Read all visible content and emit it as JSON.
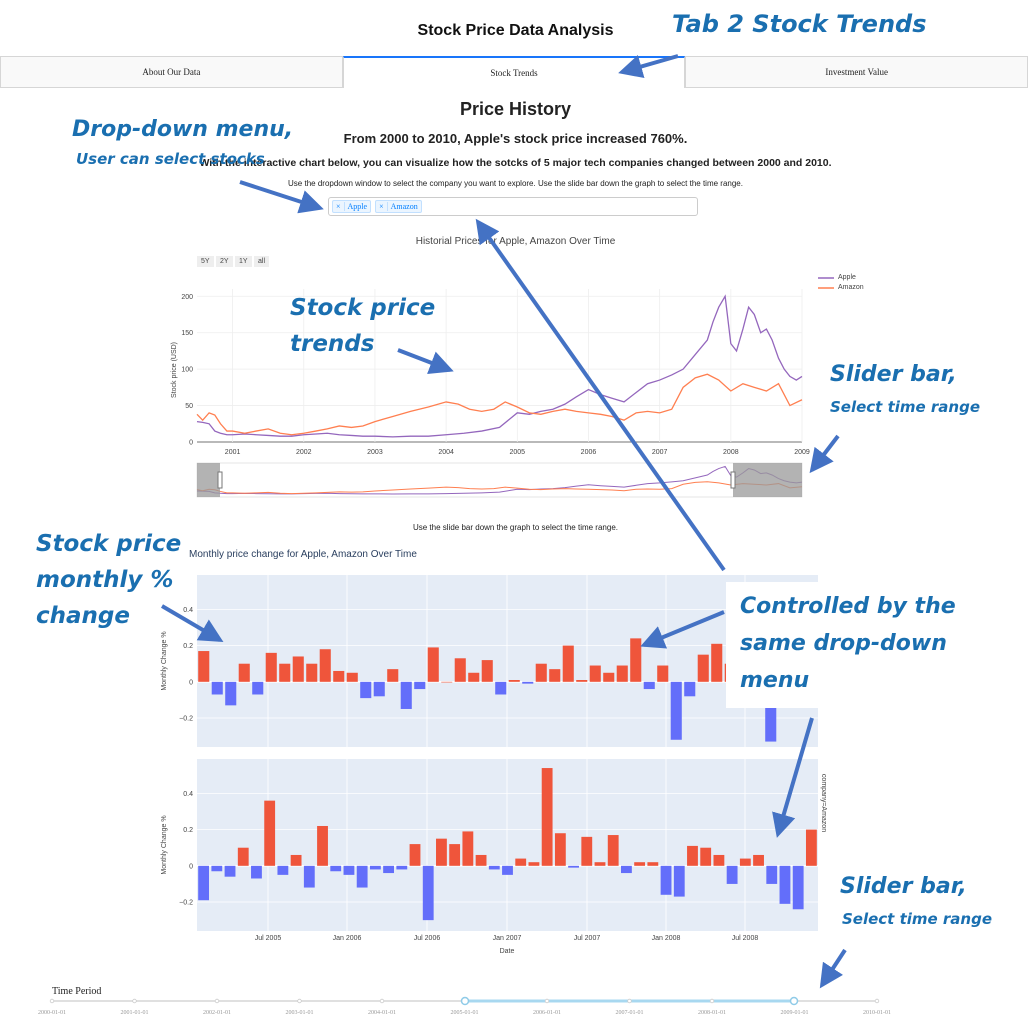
{
  "app": {
    "title": "Stock Price Data Analysis"
  },
  "tabs": [
    {
      "label": "About Our Data",
      "active": false
    },
    {
      "label": "Stock Trends",
      "active": true
    },
    {
      "label": "Investment Value",
      "active": false
    }
  ],
  "content": {
    "section_title": "Price History",
    "headline": "From 2000 to 2010, Apple's stock price increased 760%.",
    "intro_prefix": "With the interactive chart",
    "intro_suffix": " below, you can visualize how the sotcks of 5 major tech companies changed between 2000 and 2010.",
    "dropdown_instruction": "Use the dropdown window to select the company you want to explore. Use the slide bar down the graph to select the time range.",
    "slider_instruction": "Use the slide bar down the graph to select the time range."
  },
  "dropdown": {
    "selected": [
      {
        "remove": "×",
        "label": "Apple"
      },
      {
        "remove": "×",
        "label": "Amazon"
      }
    ]
  },
  "colors": {
    "apple": "#9467bd",
    "amazon": "#ff7f50",
    "positive": "#ef553b",
    "negative": "#636efa",
    "annotation": "#1a6fb0",
    "plot_bg": "#e5ecf6"
  },
  "chart_data": [
    {
      "type": "line",
      "title": "Historial Prices for Apple, Amazon Over Time",
      "ylabel": "Stock price (USD)",
      "xlabel": "",
      "range_buttons": [
        "5Y",
        "2Y",
        "1Y",
        "all"
      ],
      "x_ticks": [
        "2001",
        "2002",
        "2003",
        "2004",
        "2005",
        "2006",
        "2007",
        "2008",
        "2009"
      ],
      "y_ticks": [
        0,
        50,
        100,
        150,
        200
      ],
      "ylim": [
        0,
        210
      ],
      "xlim": [
        2000.5,
        2009.0
      ],
      "legend": "top-right",
      "series": [
        {
          "name": "Apple",
          "x": [
            2000.5,
            2000.58,
            2000.67,
            2000.75,
            2000.83,
            2000.92,
            2001.0,
            2001.17,
            2001.33,
            2001.5,
            2001.67,
            2001.83,
            2002.0,
            2002.17,
            2002.33,
            2002.5,
            2002.67,
            2002.83,
            2003.0,
            2003.25,
            2003.5,
            2003.75,
            2004.0,
            2004.25,
            2004.5,
            2004.75,
            2005.0,
            2005.17,
            2005.33,
            2005.5,
            2005.67,
            2005.83,
            2006.0,
            2006.17,
            2006.33,
            2006.5,
            2006.67,
            2006.83,
            2007.0,
            2007.17,
            2007.33,
            2007.5,
            2007.67,
            2007.75,
            2007.83,
            2007.92,
            2008.0,
            2008.08,
            2008.17,
            2008.25,
            2008.33,
            2008.42,
            2008.5,
            2008.58,
            2008.67,
            2008.75,
            2008.83,
            2008.92,
            2009.0
          ],
          "values": [
            28,
            27,
            25,
            15,
            12,
            10,
            10,
            11,
            10,
            9,
            8,
            8,
            10,
            11,
            12,
            10,
            9,
            8,
            8,
            7,
            8,
            8,
            10,
            12,
            15,
            20,
            40,
            38,
            42,
            45,
            52,
            62,
            72,
            65,
            60,
            55,
            68,
            80,
            85,
            92,
            100,
            120,
            140,
            165,
            185,
            200,
            135,
            125,
            155,
            185,
            175,
            150,
            155,
            140,
            115,
            100,
            90,
            85,
            90
          ]
        },
        {
          "name": "Amazon",
          "x": [
            2000.5,
            2000.58,
            2000.67,
            2000.75,
            2000.83,
            2000.92,
            2001.0,
            2001.17,
            2001.33,
            2001.5,
            2001.67,
            2001.83,
            2002.0,
            2002.17,
            2002.33,
            2002.5,
            2002.67,
            2002.83,
            2003.0,
            2003.25,
            2003.5,
            2003.75,
            2004.0,
            2004.17,
            2004.33,
            2004.5,
            2004.67,
            2004.83,
            2005.0,
            2005.17,
            2005.33,
            2005.5,
            2005.67,
            2005.83,
            2006.0,
            2006.17,
            2006.33,
            2006.5,
            2006.67,
            2006.83,
            2007.0,
            2007.17,
            2007.33,
            2007.5,
            2007.67,
            2007.83,
            2008.0,
            2008.17,
            2008.33,
            2008.5,
            2008.67,
            2008.83,
            2009.0
          ],
          "values": [
            38,
            30,
            40,
            37,
            25,
            15,
            15,
            12,
            15,
            18,
            12,
            10,
            12,
            15,
            18,
            22,
            20,
            22,
            28,
            35,
            42,
            48,
            55,
            52,
            45,
            42,
            45,
            55,
            48,
            40,
            38,
            42,
            45,
            42,
            40,
            38,
            35,
            30,
            40,
            42,
            40,
            45,
            75,
            88,
            93,
            85,
            70,
            80,
            75,
            70,
            80,
            50,
            58
          ]
        }
      ]
    },
    {
      "type": "bar",
      "title": "Monthly price change for Apple, Amazon Over Time",
      "ylabel": "Monthly Change %",
      "xlabel": "Date",
      "x_ticks": [
        "Jul 2005",
        "Jan 2006",
        "Jul 2006",
        "Jan 2007",
        "Jul 2007",
        "Jan 2008",
        "Jul 2008"
      ],
      "facet_label": "company=Amazon",
      "series": [
        {
          "name": "Apple",
          "y_ticks": [
            "0.4",
            "0.2",
            "0",
            "−0.2"
          ],
          "ylim": [
            -0.36,
            0.59
          ],
          "values": [
            0.17,
            -0.07,
            -0.13,
            0.1,
            -0.07,
            0.16,
            0.1,
            0.14,
            0.1,
            0.18,
            0.06,
            0.05,
            -0.09,
            -0.08,
            0.07,
            -0.15,
            -0.04,
            0.19,
            0.0,
            0.13,
            0.05,
            0.12,
            -0.07,
            0.01,
            -0.01,
            0.1,
            0.07,
            0.2,
            0.01,
            0.09,
            0.05,
            0.09,
            0.24,
            -0.04,
            0.09,
            -0.32,
            -0.08,
            0.15,
            0.21,
            0.1,
            -0.1,
            0.0,
            -0.33,
            0.0,
            0.0,
            0.05
          ]
        },
        {
          "name": "Amazon",
          "y_ticks": [
            "0.4",
            "0.2",
            "0",
            "−0.2"
          ],
          "ylim": [
            -0.36,
            0.59
          ],
          "values": [
            -0.19,
            -0.03,
            -0.06,
            0.1,
            -0.07,
            0.36,
            -0.05,
            0.06,
            -0.12,
            0.22,
            -0.03,
            -0.05,
            -0.12,
            -0.02,
            -0.04,
            -0.02,
            0.12,
            -0.3,
            0.15,
            0.12,
            0.19,
            0.06,
            -0.02,
            -0.05,
            0.04,
            0.02,
            0.54,
            0.18,
            -0.01,
            0.16,
            0.02,
            0.17,
            -0.04,
            0.02,
            0.02,
            -0.16,
            -0.17,
            0.11,
            0.1,
            0.06,
            -0.1,
            0.04,
            0.06,
            -0.1,
            -0.21,
            -0.24,
            0.2
          ]
        }
      ]
    }
  ],
  "time_period": {
    "label": "Time Period",
    "marks": [
      "2000-01-01",
      "2001-01-01",
      "2002-01-01",
      "2003-01-01",
      "2004-01-01",
      "2005-01-01",
      "2006-01-01",
      "2007-01-01",
      "2008-01-01",
      "2009-01-01",
      "2010-01-01"
    ],
    "selected_range": [
      "2005-01-01",
      "2009-01-01"
    ]
  },
  "annotations": [
    {
      "line1": "Tab 2 Stock Trends"
    },
    {
      "line1": "Drop-down menu,",
      "line2": "User can select stocks"
    },
    {
      "line1": "Stock price",
      "line2": "trends"
    },
    {
      "line1": "Slider bar,",
      "line2": "Select time range"
    },
    {
      "line1": "Stock price",
      "line2": "monthly %",
      "line3": "change"
    },
    {
      "line1": "Controlled by the",
      "line2": "same drop-down",
      "line3": "menu"
    },
    {
      "line1": "Slider bar,",
      "line2": "Select time range"
    }
  ]
}
